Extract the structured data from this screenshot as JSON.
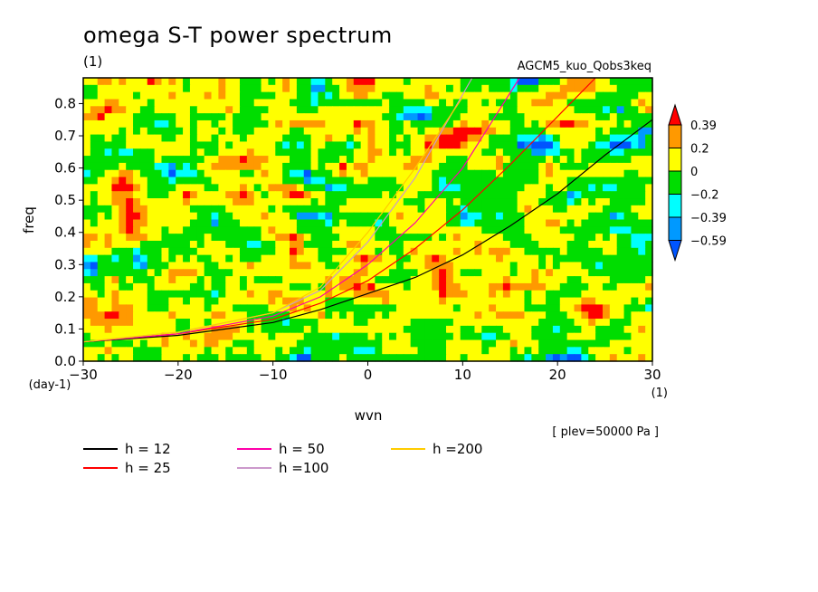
{
  "chart_data": {
    "type": "heatmap",
    "title": "omega S-T power spectrum",
    "units_note": "(1)",
    "dataset": "AGCM5_kuo_Qobs3keq",
    "xlabel": "wvn",
    "xunit": "(1)",
    "ylabel": "freq",
    "yunit": "(day-1)",
    "xlim": [
      -30,
      30
    ],
    "ylim": [
      0,
      0.88
    ],
    "xticks": [
      -30,
      -20,
      -10,
      0,
      10,
      20,
      30
    ],
    "yticks": [
      0.0,
      0.1,
      0.2,
      0.3,
      0.4,
      0.5,
      0.6,
      0.7,
      0.8
    ],
    "footnote": "[ plev=50000 Pa ]",
    "colorbar": {
      "levels": [
        "0.39",
        "0.2",
        "0",
        "-0.2",
        "-0.39",
        "-0.59"
      ],
      "colors": [
        "#ff0000",
        "#ff9900",
        "#ffff00",
        "#00dd00",
        "#00ffff",
        "#0099ff",
        "#0055ff"
      ]
    },
    "legend_placement": "bottom",
    "series": [
      {
        "name": "h = 12",
        "color": "#000000",
        "x": [
          -30,
          -20,
          -10,
          -5,
          0,
          5,
          10,
          15,
          20,
          25,
          30
        ],
        "y": [
          0.06,
          0.08,
          0.12,
          0.16,
          0.21,
          0.26,
          0.33,
          0.42,
          0.52,
          0.64,
          0.75
        ]
      },
      {
        "name": "h = 25",
        "color": "#ff0000",
        "x": [
          -30,
          -20,
          -10,
          -5,
          0,
          5,
          10,
          15,
          20,
          24
        ],
        "y": [
          0.06,
          0.085,
          0.13,
          0.18,
          0.25,
          0.35,
          0.47,
          0.61,
          0.76,
          0.88
        ]
      },
      {
        "name": "h = 50",
        "color": "#ff00aa",
        "x": [
          -30,
          -20,
          -10,
          -5,
          0,
          5,
          10,
          16
        ],
        "y": [
          0.06,
          0.085,
          0.14,
          0.2,
          0.3,
          0.43,
          0.6,
          0.88
        ]
      },
      {
        "name": "h =100",
        "color": "#cc99cc",
        "x": [
          -30,
          -20,
          -10,
          -5,
          0,
          5,
          11
        ],
        "y": [
          0.06,
          0.09,
          0.15,
          0.22,
          0.37,
          0.57,
          0.88
        ]
      },
      {
        "name": "h =200",
        "color": "#ffcc00",
        "x": [
          -30,
          -20,
          -10,
          -5,
          0,
          5,
          10
        ],
        "y": [
          0.06,
          0.09,
          0.15,
          0.23,
          0.4,
          0.6,
          0.82
        ]
      }
    ]
  }
}
